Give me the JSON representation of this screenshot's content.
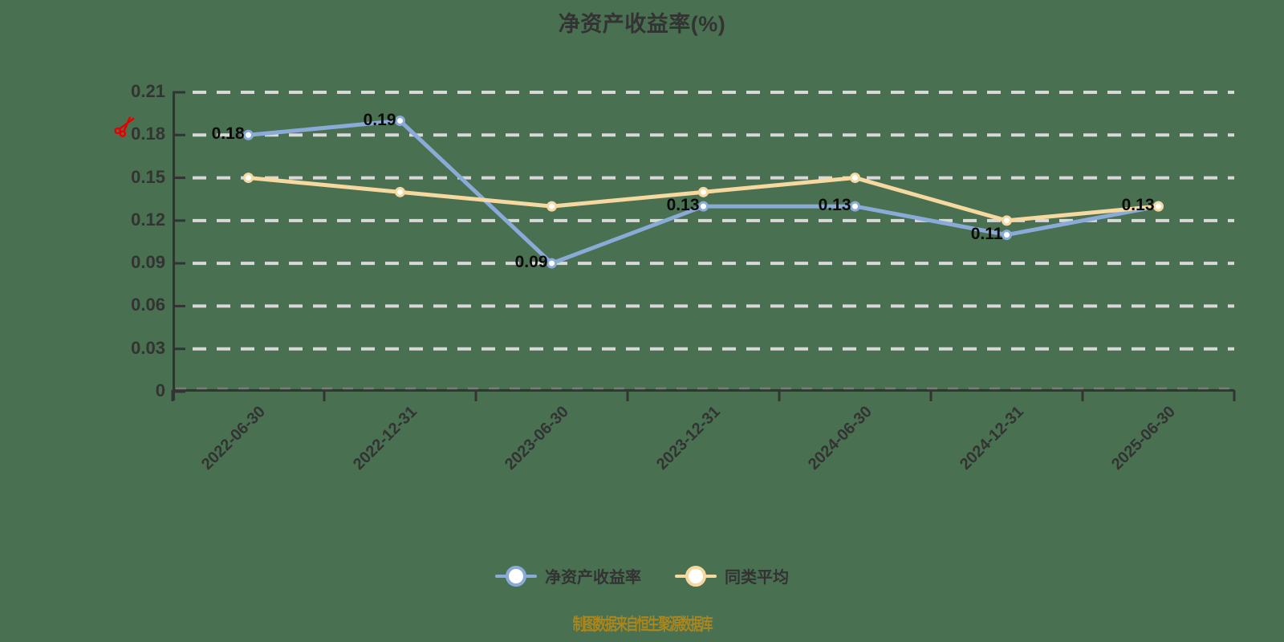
{
  "caption": {
    "text": "制图数据来自恒生聚源数据库"
  },
  "colors": {
    "background": "#497051",
    "axis": "#333333",
    "axis_minor_dash": "#7a7a7a",
    "grid": "#d8d8d8",
    "tick_label": "#333333",
    "data_label": "#0a0a0a",
    "caption": "#aa861e",
    "scissors": "#e60000",
    "series_roe": "#8aabd8",
    "series_avg": "#f6d9a0",
    "marker_fill": "#ffffff"
  },
  "chart_data": {
    "type": "line",
    "title": "净资产收益率(%)",
    "categories": [
      "2022-06-30",
      "2022-12-31",
      "2023-06-30",
      "2023-12-31",
      "2024-06-30",
      "2024-12-31",
      "2025-06-30"
    ],
    "series": [
      {
        "name": "净资产收益率",
        "color": "#8aabd8",
        "values": [
          0.18,
          0.19,
          0.09,
          0.13,
          0.13,
          0.11,
          0.13
        ],
        "point_labels": [
          "0.18",
          "0.19",
          "0.09",
          "0.13",
          "0.13",
          "0.11",
          "0.13"
        ]
      },
      {
        "name": "同类平均",
        "color": "#f6d9a0",
        "values": [
          0.15,
          0.14,
          0.13,
          0.14,
          0.15,
          0.12,
          0.13
        ],
        "point_labels": []
      }
    ],
    "ylim": [
      0,
      0.21
    ],
    "yticks": [
      0.21,
      0.18,
      0.15,
      0.12,
      0.09,
      0.06,
      0.03,
      0
    ],
    "ytick_labels": [
      "0.21",
      "0.18",
      "0.15",
      "0.12",
      "0.09",
      "0.06",
      "0.03",
      "0"
    ],
    "grid": "dashed-horizontal",
    "legend_position": "bottom"
  }
}
